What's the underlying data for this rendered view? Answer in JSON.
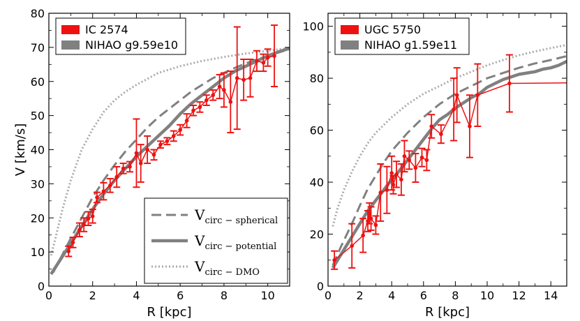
{
  "colors": {
    "observed": "#ee1111",
    "simulated": "#808080",
    "dmo": "#aaaaaa",
    "axis": "#000000"
  },
  "chart_data": [
    {
      "type": "line",
      "name": "left",
      "xlabel": "R [kpc]",
      "ylabel": "V [km/s]",
      "xlim": [
        0,
        11
      ],
      "ylim": [
        0,
        80
      ],
      "xticks": [
        0,
        2,
        4,
        6,
        8,
        10
      ],
      "yticks": [
        0,
        10,
        20,
        30,
        40,
        50,
        60,
        70,
        80
      ],
      "xtick_labels": [
        "0",
        "2",
        "4",
        "6",
        "8",
        "10"
      ],
      "ytick_labels": [
        "0",
        "10",
        "20",
        "30",
        "40",
        "50",
        "60",
        "70",
        "80"
      ],
      "legend": [
        {
          "label": "IC 2574",
          "series": "observed"
        },
        {
          "label": "NIHAO g9.59e10",
          "series": "potential"
        }
      ],
      "observed": {
        "name": "IC 2574",
        "x": [
          0.9,
          1.1,
          1.4,
          1.6,
          1.8,
          2.0,
          2.2,
          2.5,
          2.8,
          3.1,
          3.4,
          3.7,
          4.0,
          4.2,
          4.5,
          4.8,
          5.1,
          5.4,
          5.7,
          6.0,
          6.3,
          6.6,
          6.9,
          7.2,
          7.5,
          7.8,
          8.0,
          8.3,
          8.6,
          8.9,
          9.2,
          9.5,
          9.8,
          10.0,
          10.3
        ],
        "y": [
          10.2,
          12.8,
          16.5,
          18.0,
          19.8,
          20.5,
          26.0,
          27.8,
          29.5,
          32.0,
          34.5,
          35.0,
          39.0,
          36.0,
          40.0,
          38.5,
          41.5,
          42.5,
          44.0,
          45.8,
          48.5,
          51.5,
          52.5,
          54.5,
          56.0,
          58.5,
          57.5,
          54.0,
          61.0,
          60.5,
          61.0,
          66.0,
          65.5,
          67.0,
          67.5
        ],
        "err": [
          1.5,
          1.5,
          2.0,
          2.0,
          2.0,
          2.0,
          1.5,
          2.5,
          2.0,
          3.0,
          1.5,
          1.5,
          10.0,
          5.5,
          4.0,
          1.5,
          1.0,
          1.0,
          1.5,
          1.5,
          2.0,
          1.5,
          1.5,
          1.5,
          1.5,
          3.5,
          5.0,
          9.0,
          15.0,
          6.0,
          5.5,
          3.0,
          2.5,
          2.5,
          9.0
        ]
      },
      "spherical": {
        "x": [
          0.2,
          0.6,
          1.0,
          1.5,
          2.0,
          2.5,
          3.0,
          3.5,
          4.0,
          4.5,
          5.0,
          5.5,
          6.0,
          6.5,
          7.0,
          7.5,
          8.0,
          8.5,
          9.0,
          9.5,
          10.0,
          10.5,
          11.0
        ],
        "y": [
          4.0,
          9.0,
          14.0,
          20.0,
          26.0,
          31.0,
          35.5,
          39.5,
          43.0,
          46.5,
          49.5,
          52.0,
          54.5,
          57.0,
          59.0,
          61.0,
          62.5,
          64.0,
          65.3,
          66.5,
          67.5,
          68.5,
          69.5
        ]
      },
      "potential": {
        "x": [
          0.1,
          0.5,
          1.0,
          1.5,
          2.0,
          2.5,
          3.0,
          3.5,
          4.0,
          4.5,
          5.0,
          5.5,
          6.0,
          6.5,
          7.0,
          7.5,
          8.0,
          8.5,
          9.0,
          9.5,
          10.0,
          10.5,
          11.0
        ],
        "y": [
          3.5,
          7.5,
          12.5,
          17.5,
          22.5,
          27.0,
          31.0,
          34.5,
          38.0,
          41.0,
          44.0,
          47.0,
          50.5,
          53.5,
          56.0,
          58.5,
          61.0,
          63.0,
          64.5,
          66.0,
          67.5,
          68.7,
          69.7
        ]
      },
      "dmo": {
        "x": [
          0.1,
          0.3,
          0.6,
          1.0,
          1.5,
          2.0,
          2.5,
          3.0,
          3.5,
          4.0,
          5.0,
          6.0,
          7.0,
          8.0,
          9.0,
          10.0,
          11.0
        ],
        "y": [
          9.0,
          14.0,
          22.0,
          31.0,
          40.0,
          46.0,
          51.0,
          54.5,
          57.0,
          59.0,
          62.5,
          64.5,
          66.0,
          67.2,
          68.2,
          69.0,
          69.8
        ]
      },
      "model_legend": [
        {
          "main": "V",
          "sub": "circ − spherical",
          "series": "spherical"
        },
        {
          "main": "V",
          "sub": "circ − potential",
          "series": "potential"
        },
        {
          "main": "V",
          "sub": "circ − DMO",
          "series": "dmo"
        }
      ]
    },
    {
      "type": "line",
      "name": "right",
      "xlabel": "R [kpc]",
      "xlim": [
        0,
        15
      ],
      "ylim": [
        0,
        105
      ],
      "xticks": [
        0,
        2,
        4,
        6,
        8,
        10,
        12,
        14
      ],
      "yticks": [
        0,
        20,
        40,
        60,
        80,
        100
      ],
      "xtick_labels": [
        "0",
        "2",
        "4",
        "6",
        "8",
        "10",
        "12",
        "14"
      ],
      "ytick_labels": [
        "0",
        "20",
        "40",
        "60",
        "80",
        "100"
      ],
      "legend": [
        {
          "label": "UGC 5750",
          "series": "observed"
        },
        {
          "label": "NIHAO g1.59e11",
          "series": "potential"
        }
      ],
      "observed": {
        "name": "UGC 5750",
        "x": [
          0.4,
          1.5,
          2.2,
          2.5,
          2.6,
          2.7,
          3.0,
          3.3,
          3.7,
          4.0,
          4.1,
          4.3,
          4.6,
          4.8,
          5.1,
          5.5,
          5.9,
          6.2,
          6.5,
          7.1,
          7.9,
          8.1,
          8.9,
          9.4,
          11.4
        ],
        "y": [
          10.0,
          15.5,
          19.5,
          25.0,
          28.0,
          26.0,
          23.5,
          36.0,
          37.0,
          43.5,
          39.0,
          43.0,
          41.0,
          50.0,
          48.5,
          45.5,
          49.5,
          48.5,
          61.5,
          58.5,
          68.0,
          73.5,
          61.5,
          73.5,
          78.0
        ],
        "err": [
          3.5,
          8.5,
          6.5,
          4.0,
          4.0,
          4.5,
          3.5,
          11.0,
          9.0,
          6.5,
          3.5,
          5.0,
          6.0,
          6.0,
          3.5,
          5.5,
          3.5,
          4.0,
          4.5,
          3.5,
          12.0,
          10.5,
          12.0,
          12.0,
          11.0
        ]
      },
      "observed_tail": {
        "x": [
          11.4,
          15.0
        ],
        "y": [
          78.0,
          78.2
        ]
      },
      "spherical": {
        "x": [
          0.3,
          0.8,
          1.5,
          2.0,
          2.5,
          3.0,
          3.5,
          4.0,
          4.5,
          5.0,
          5.5,
          6.0,
          6.5,
          7.0,
          8.0,
          9.0,
          10.0,
          11.0,
          12.0,
          13.0,
          14.0,
          15.0
        ],
        "y": [
          8.0,
          15.0,
          24.0,
          31.0,
          37.5,
          42.5,
          47.5,
          52.0,
          55.5,
          59.0,
          62.0,
          65.0,
          67.5,
          70.0,
          74.0,
          77.0,
          80.0,
          82.0,
          84.0,
          85.7,
          87.0,
          88.5
        ]
      },
      "potential": {
        "x": [
          0.3,
          0.8,
          1.5,
          2.0,
          2.5,
          3.0,
          3.5,
          4.0,
          4.5,
          5.0,
          5.5,
          6.0,
          6.5,
          7.0,
          7.5,
          8.0,
          8.5,
          9.0,
          9.5,
          10.0,
          10.5,
          11.0,
          11.5,
          12.0,
          12.5,
          13.0,
          13.5,
          14.0,
          14.5,
          15.0
        ],
        "y": [
          7.0,
          12.0,
          19.0,
          24.0,
          29.0,
          33.0,
          37.0,
          41.0,
          44.5,
          48.5,
          52.5,
          56.5,
          60.5,
          64.0,
          66.0,
          68.5,
          70.5,
          72.5,
          74.0,
          76.5,
          78.0,
          79.5,
          80.5,
          81.5,
          82.0,
          82.5,
          83.5,
          84.0,
          85.0,
          86.5
        ]
      },
      "dmo": {
        "x": [
          0.3,
          0.6,
          1.0,
          1.5,
          2.0,
          2.5,
          3.0,
          4.0,
          5.0,
          6.0,
          7.0,
          8.0,
          9.0,
          10.0,
          11.0,
          12.0,
          13.0,
          14.0,
          15.0
        ],
        "y": [
          23.0,
          30.0,
          37.0,
          44.0,
          50.0,
          55.0,
          59.0,
          65.0,
          70.0,
          74.0,
          77.0,
          80.0,
          82.5,
          85.0,
          87.0,
          88.8,
          90.3,
          91.6,
          92.8
        ]
      }
    }
  ]
}
